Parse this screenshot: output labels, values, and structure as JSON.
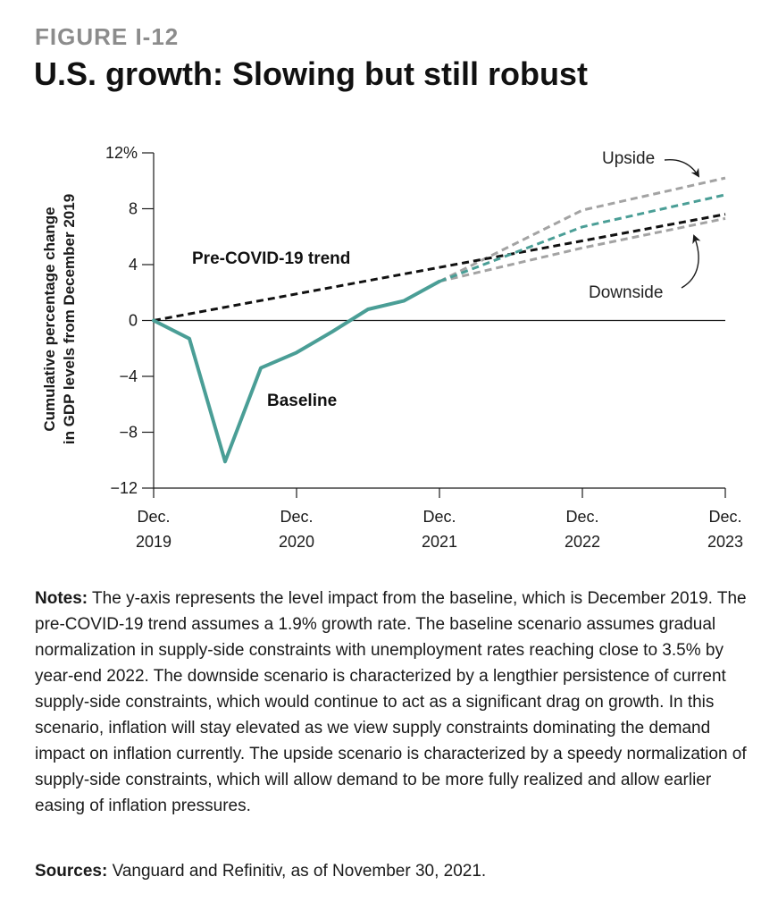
{
  "figure": {
    "label": "FIGURE I-12",
    "title": "U.S. growth: Slowing but still robust"
  },
  "chart_data": {
    "type": "line",
    "ylabel_line1": "Cumulative percentage change",
    "ylabel_line2": "in GDP levels from December 2019",
    "ylim": [
      -12,
      12
    ],
    "y_ticks": [
      {
        "value": 12,
        "label": "12%"
      },
      {
        "value": 8,
        "label": "8"
      },
      {
        "value": 4,
        "label": "4"
      },
      {
        "value": 0,
        "label": "0"
      },
      {
        "value": -4,
        "label": "−4"
      },
      {
        "value": -8,
        "label": "−8"
      },
      {
        "value": -12,
        "label": "−12"
      }
    ],
    "xlim": [
      0,
      16
    ],
    "x_ticks": [
      {
        "value": 0,
        "line1": "Dec.",
        "line2": "2019"
      },
      {
        "value": 4,
        "line1": "Dec.",
        "line2": "2020"
      },
      {
        "value": 8,
        "line1": "Dec.",
        "line2": "2021"
      },
      {
        "value": 12,
        "line1": "Dec.",
        "line2": "2022"
      },
      {
        "value": 16,
        "line1": "Dec.",
        "line2": "2023"
      }
    ],
    "x_unit": "quarters since Dec. 2019",
    "colors": {
      "baseline": "#4a9e96",
      "trend": "#111111",
      "scenario": "#a3a3a3",
      "axis": "#1a1a1a"
    },
    "series": [
      {
        "name": "Pre-COVID-19 trend",
        "style": "dashed",
        "color_key": "trend",
        "x": [
          0,
          16
        ],
        "y": [
          0,
          7.6
        ]
      },
      {
        "name": "Baseline",
        "style": "solid",
        "color_key": "baseline",
        "x": [
          0,
          1,
          2,
          3,
          4,
          5,
          6,
          7,
          8
        ],
        "y": [
          0,
          -1.3,
          -10.1,
          -3.4,
          -2.3,
          -0.8,
          0.8,
          1.4,
          2.8
        ]
      },
      {
        "name": "Baseline projection",
        "style": "dashed",
        "color_key": "baseline",
        "x": [
          8,
          12,
          16
        ],
        "y": [
          2.8,
          6.7,
          9.0
        ]
      },
      {
        "name": "Upside",
        "style": "dashed",
        "color_key": "scenario",
        "x": [
          8,
          12,
          16
        ],
        "y": [
          2.8,
          7.9,
          10.2
        ]
      },
      {
        "name": "Downside",
        "style": "dashed",
        "color_key": "scenario",
        "x": [
          8,
          12,
          16
        ],
        "y": [
          2.8,
          5.2,
          7.3
        ]
      }
    ],
    "annotations": {
      "trend": "Pre-COVID-19 trend",
      "baseline": "Baseline",
      "upside": "Upside",
      "downside": "Downside"
    }
  },
  "notes": {
    "label": "Notes:",
    "text": " The y-axis represents the level impact from the baseline, which is December 2019. The pre-COVID-19 trend assumes a 1.9% growth rate. The baseline scenario assumes gradual normalization in supply-side constraints with unemployment rates reaching close to 3.5% by year-end 2022. The downside scenario is characterized by a lengthier persistence of current supply-side constraints, which would continue to act as a significant drag on growth. In this scenario, inflation will stay elevated as we view supply constraints dominating the demand impact on inflation currently. The upside scenario is characterized by a speedy normalization of supply-side constraints, which will allow demand to be more fully realized and allow earlier easing of inflation pressures."
  },
  "sources": {
    "label": "Sources:",
    "text": " Vanguard and Refinitiv, as of November 30, 2021."
  }
}
